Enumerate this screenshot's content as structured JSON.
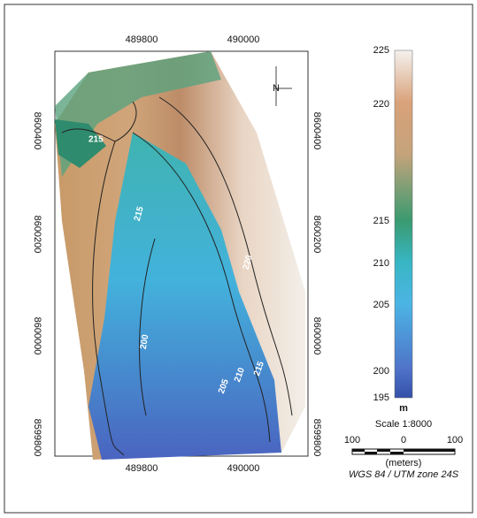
{
  "map": {
    "top_labels": [
      "489800",
      "490000"
    ],
    "bottom_labels": [
      "489800",
      "490000"
    ],
    "left_labels": [
      "8600400",
      "8600200",
      "8600000",
      "8599800"
    ],
    "right_labels": [
      "8600400",
      "8600200",
      "8600000",
      "8599800"
    ],
    "north": "N",
    "contour_labels": [
      "215",
      "215",
      "220",
      "200",
      "205",
      "210",
      "215"
    ],
    "legend": {
      "ticks": [
        "225",
        "220",
        "215",
        "210",
        "205",
        "200",
        "195"
      ],
      "unit": "m"
    },
    "scale": {
      "title": "Scale 1:8000",
      "labels": [
        "100",
        "0",
        "100"
      ],
      "unit": "(meters)"
    },
    "projection": "WGS 84 / UTM zone 24S"
  }
}
